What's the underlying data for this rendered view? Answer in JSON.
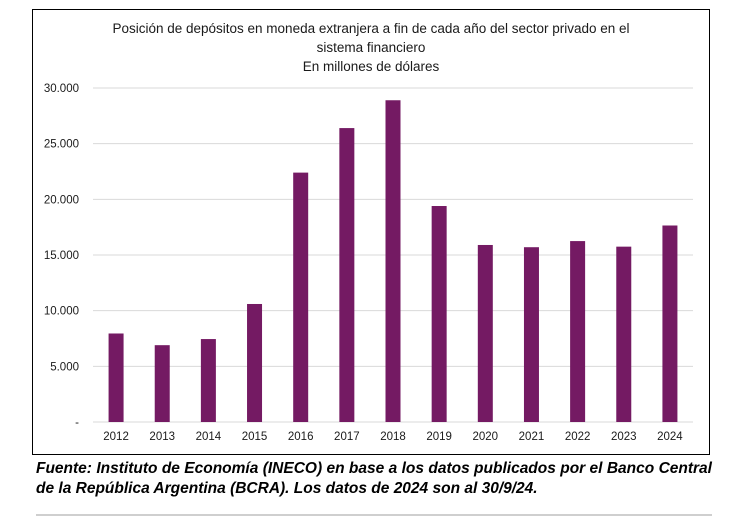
{
  "chart_data": {
    "type": "bar",
    "title": "Posición de depósitos en moneda extranjera a fin de cada año del sector privado en el sistema financiero",
    "subtitle": "En millones de dólares",
    "categories": [
      "2012",
      "2013",
      "2014",
      "2015",
      "2016",
      "2017",
      "2018",
      "2019",
      "2020",
      "2021",
      "2022",
      "2023",
      "2024"
    ],
    "values": [
      7950,
      6900,
      7450,
      10600,
      22400,
      26400,
      28900,
      19400,
      15900,
      15700,
      16250,
      15750,
      17650
    ],
    "yticks": [
      "-",
      "5.000",
      "10.000",
      "15.000",
      "20.000",
      "25.000",
      "30.000"
    ],
    "ylim": [
      0,
      30000
    ],
    "xlabel": "",
    "ylabel": "",
    "bar_color": "#741a63",
    "grid_color": "#d9d9d9"
  },
  "title_lines": [
    "Posición de depósitos en moneda extranjera a fin de cada año del sector privado en el",
    "sistema financiero",
    "En millones de dólares"
  ],
  "source_note": "Fuente: Instituto de Economía (INECO) en base a los datos publicados por el Banco Central de la República Argentina (BCRA). Los datos de 2024 son al 30/9/24."
}
